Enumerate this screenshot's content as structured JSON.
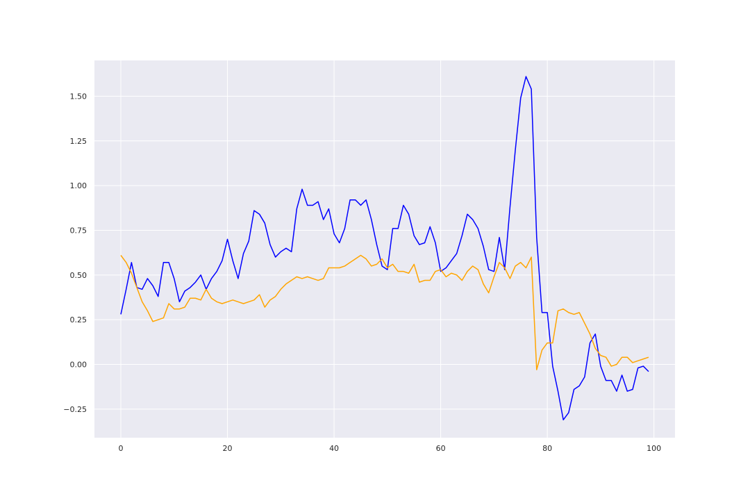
{
  "chart_data": {
    "type": "line",
    "title": "",
    "xlabel": "",
    "ylabel": "",
    "xlim": [
      -4.95,
      103.95
    ],
    "ylim": [
      -0.41,
      1.7
    ],
    "xticks": [
      0,
      20,
      40,
      60,
      80,
      100
    ],
    "yticks": [
      -0.25,
      0.0,
      0.25,
      0.5,
      0.75,
      1.0,
      1.25,
      1.5
    ],
    "xtick_labels": [
      "0",
      "20",
      "40",
      "60",
      "80",
      "100"
    ],
    "ytick_labels": [
      "−0.25",
      "0.00",
      "0.25",
      "0.50",
      "0.75",
      "1.00",
      "1.25",
      "1.50"
    ],
    "grid": true,
    "legend": "none",
    "background_color": "#eaeaf2",
    "grid_color": "#ffffff",
    "x": [
      0,
      1,
      2,
      3,
      4,
      5,
      6,
      7,
      8,
      9,
      10,
      11,
      12,
      13,
      14,
      15,
      16,
      17,
      18,
      19,
      20,
      21,
      22,
      23,
      24,
      25,
      26,
      27,
      28,
      29,
      30,
      31,
      32,
      33,
      34,
      35,
      36,
      37,
      38,
      39,
      40,
      41,
      42,
      43,
      44,
      45,
      46,
      47,
      48,
      49,
      50,
      51,
      52,
      53,
      54,
      55,
      56,
      57,
      58,
      59,
      60,
      61,
      62,
      63,
      64,
      65,
      66,
      67,
      68,
      69,
      70,
      71,
      72,
      73,
      74,
      75,
      76,
      77,
      78,
      79,
      80,
      81,
      82,
      83,
      84,
      85,
      86,
      87,
      88,
      89,
      90,
      91,
      92,
      93,
      94,
      95,
      96,
      97,
      98,
      99
    ],
    "series": [
      {
        "color": "#0000ff",
        "values": [
          0.28,
          0.42,
          0.57,
          0.43,
          0.42,
          0.48,
          0.44,
          0.38,
          0.57,
          0.57,
          0.48,
          0.35,
          0.41,
          0.43,
          0.46,
          0.5,
          0.42,
          0.48,
          0.52,
          0.58,
          0.7,
          0.58,
          0.48,
          0.62,
          0.69,
          0.86,
          0.84,
          0.79,
          0.67,
          0.6,
          0.63,
          0.65,
          0.63,
          0.87,
          0.98,
          0.89,
          0.89,
          0.91,
          0.81,
          0.87,
          0.73,
          0.68,
          0.76,
          0.92,
          0.92,
          0.89,
          0.92,
          0.81,
          0.67,
          0.55,
          0.53,
          0.76,
          0.76,
          0.89,
          0.84,
          0.72,
          0.67,
          0.68,
          0.77,
          0.68,
          0.52,
          0.54,
          0.58,
          0.62,
          0.72,
          0.84,
          0.81,
          0.76,
          0.66,
          0.53,
          0.52,
          0.71,
          0.53,
          0.88,
          1.2,
          1.49,
          1.61,
          1.54,
          0.71,
          0.29,
          0.29,
          -0.01,
          -0.15,
          -0.31,
          -0.27,
          -0.14,
          -0.12,
          -0.07,
          0.12,
          0.17,
          -0.01,
          -0.09,
          -0.09,
          -0.15,
          -0.06,
          -0.15,
          -0.14,
          -0.02,
          -0.01,
          -0.04
        ]
      },
      {
        "color": "#ffa500",
        "values": [
          0.61,
          0.57,
          0.51,
          0.43,
          0.35,
          0.3,
          0.24,
          0.25,
          0.26,
          0.34,
          0.31,
          0.31,
          0.32,
          0.37,
          0.37,
          0.36,
          0.42,
          0.37,
          0.35,
          0.34,
          0.35,
          0.36,
          0.35,
          0.34,
          0.35,
          0.36,
          0.39,
          0.32,
          0.36,
          0.38,
          0.42,
          0.45,
          0.47,
          0.49,
          0.48,
          0.49,
          0.48,
          0.47,
          0.48,
          0.54,
          0.54,
          0.54,
          0.55,
          0.57,
          0.59,
          0.61,
          0.59,
          0.55,
          0.56,
          0.59,
          0.54,
          0.56,
          0.52,
          0.52,
          0.51,
          0.56,
          0.46,
          0.47,
          0.47,
          0.52,
          0.53,
          0.49,
          0.51,
          0.5,
          0.47,
          0.52,
          0.55,
          0.53,
          0.45,
          0.4,
          0.49,
          0.57,
          0.54,
          0.48,
          0.55,
          0.57,
          0.54,
          0.6,
          -0.03,
          0.08,
          0.12,
          0.12,
          0.3,
          0.31,
          0.29,
          0.28,
          0.29,
          0.23,
          0.17,
          0.09,
          0.05,
          0.04,
          -0.01,
          0.0,
          0.04,
          0.04,
          0.01,
          0.02,
          0.03,
          0.04
        ]
      }
    ]
  }
}
